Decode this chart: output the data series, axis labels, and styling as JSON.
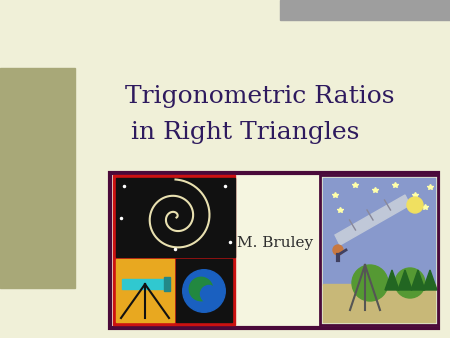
{
  "title_line1": "Trigonometric Ratios",
  "title_line2": "in Right Triangles",
  "author": "M. Bruley",
  "bg_color": "#f0f0d8",
  "left_bar_color": "#a8a878",
  "top_right_bar_color": "#9e9e9e",
  "title_color": "#2e1a5e",
  "author_color": "#2e2e2e",
  "bottom_bar_border": "#4a0a3a",
  "title_fontsize": 18,
  "author_fontsize": 11
}
